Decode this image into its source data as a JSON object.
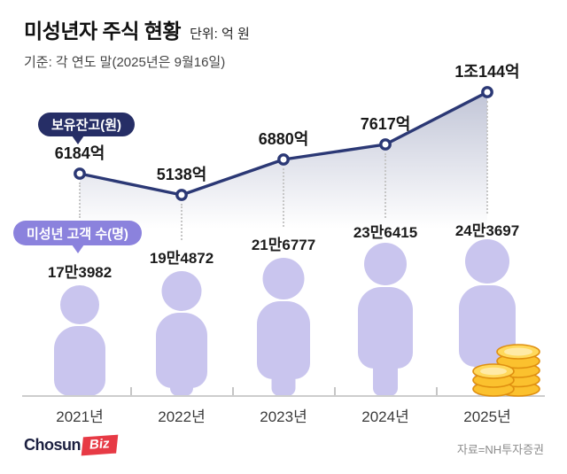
{
  "header": {
    "title": "미성년자 주식 현황",
    "unit": "단위: 억 원",
    "basis": "기준: 각 연도 말(2025년은 9월16일)"
  },
  "legend": {
    "balance_pill": "보유잔고(원)",
    "customers_pill": "미성년 고객 수(명)"
  },
  "chart_data": {
    "type": "line",
    "title": "미성년자 주식 현황",
    "unit": "억 원",
    "categories": [
      "2021년",
      "2022년",
      "2023년",
      "2024년",
      "2025년"
    ],
    "series": [
      {
        "name": "보유잔고(원)",
        "values": [
          6184,
          5138,
          6880,
          7617,
          10144
        ],
        "labels": [
          "6184억",
          "5138억",
          "6880억",
          "7617억",
          "1조144억"
        ]
      },
      {
        "name": "미성년 고객 수(명)",
        "values": [
          173982,
          194872,
          216777,
          236415,
          243697
        ],
        "labels": [
          "17만3982",
          "19만4872",
          "21만6777",
          "23만6415",
          "24만3697"
        ]
      }
    ],
    "line_color": "#2b3875",
    "marker_fill": "#ffffff",
    "area_fill_color": "#2c3976",
    "person_color": "#c9c5ee",
    "pill_navy_color": "#262e66",
    "pill_purple_color": "#8b82dd",
    "coin_color": "#fbc12e",
    "grid": "off",
    "legend_position": "inline-pills"
  },
  "footer": {
    "logo_chosun": "Chosun",
    "logo_biz": "Biz",
    "source": "자료=NH투자증권",
    "logo_red": "#e73a45"
  }
}
